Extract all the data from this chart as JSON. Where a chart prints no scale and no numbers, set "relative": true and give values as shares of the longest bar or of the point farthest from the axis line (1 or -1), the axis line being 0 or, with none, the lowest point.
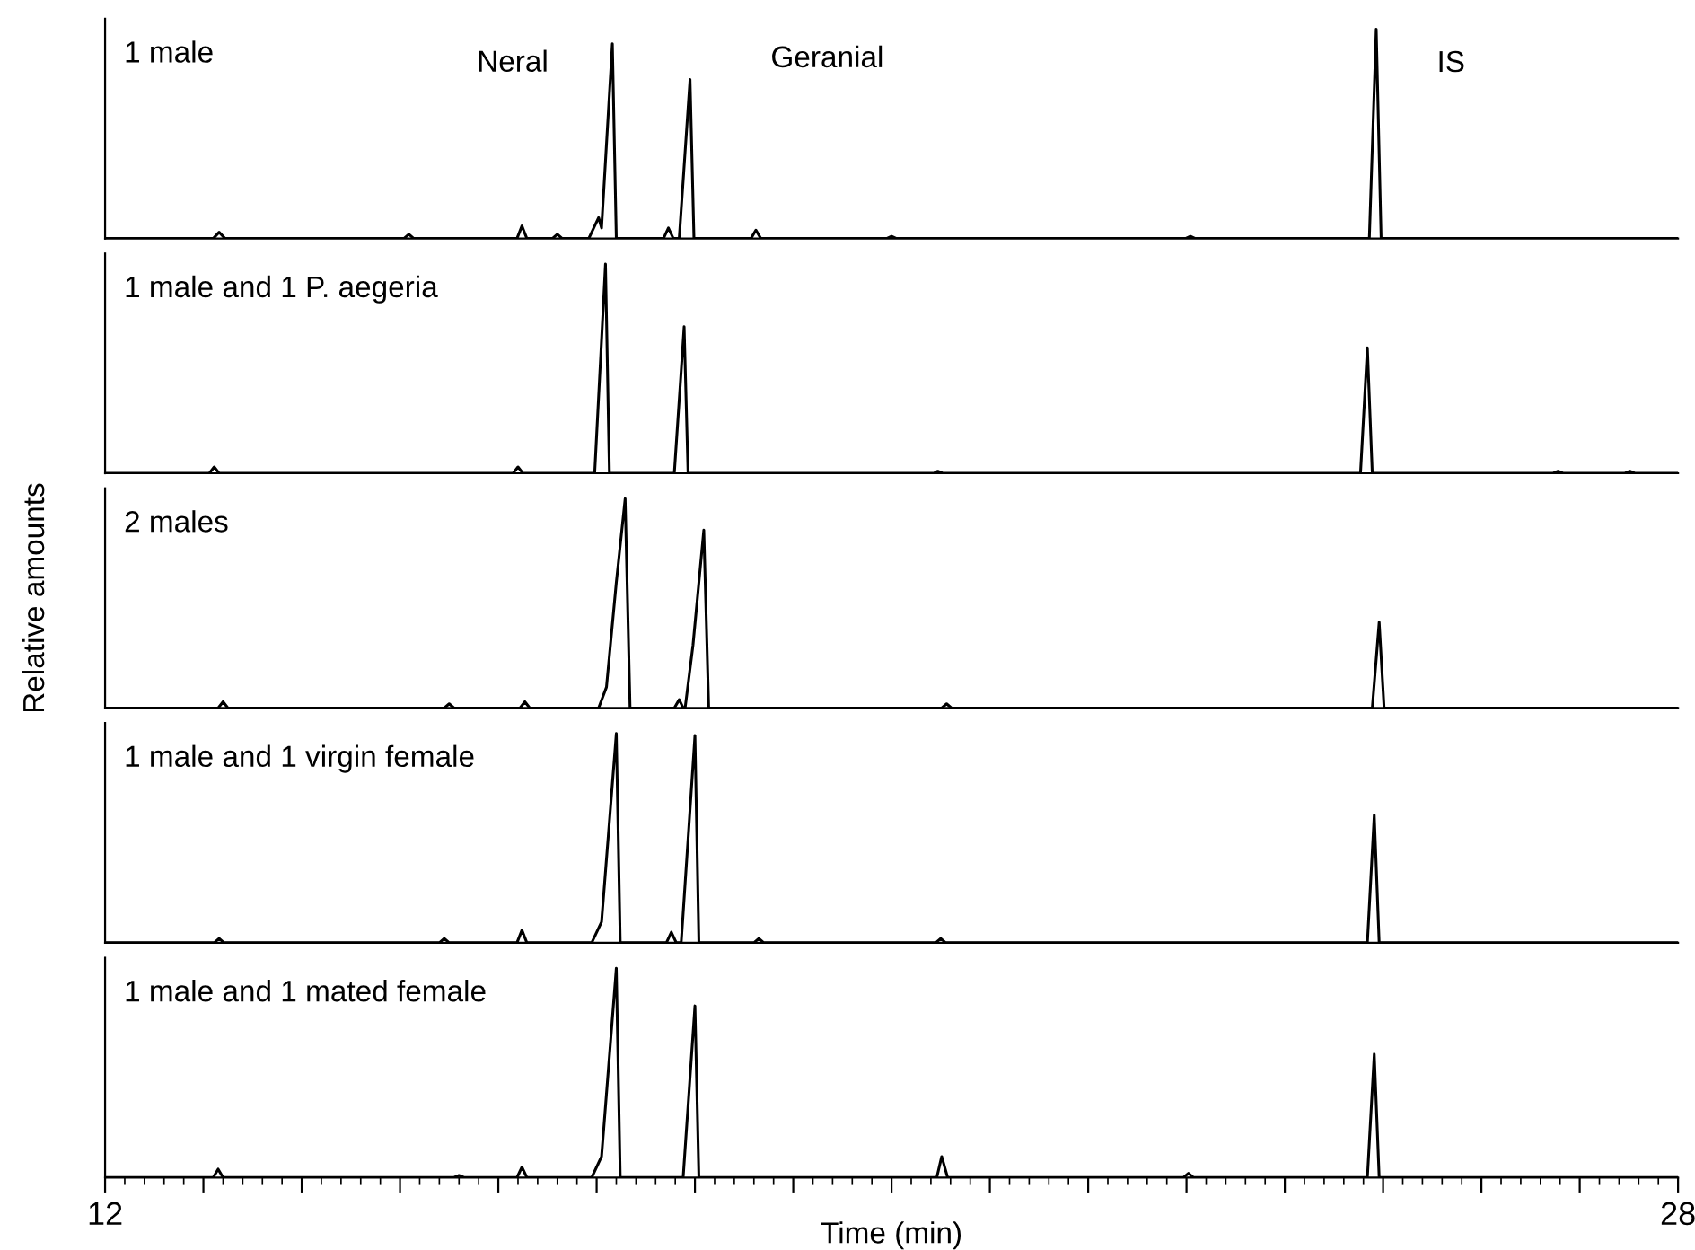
{
  "chart_data": [
    {
      "type": "line",
      "title": "1 male",
      "relative": true,
      "tick_labels": false,
      "xlim": [
        12,
        28
      ],
      "annotations": [
        {
          "text": "Neral",
          "x": 17.16,
          "y": 0.93
        },
        {
          "text": "Geranial",
          "x": 17.95,
          "y": 0.76
        },
        {
          "text": "IS",
          "x": 24.93,
          "y": 1
        }
      ],
      "series": [
        {
          "color": "#000000",
          "x": [
            12,
            13.1,
            13.16,
            13.22,
            15.04,
            15.09,
            15.14,
            16.19,
            16.24,
            16.29,
            16.55,
            16.6,
            16.65,
            16.92,
            17.02,
            17.05,
            17.16,
            17.2,
            17.68,
            17.73,
            17.78,
            17.84,
            17.95,
            17.99,
            18.57,
            18.62,
            18.67,
            19.95,
            20.0,
            20.05,
            22.99,
            23.04,
            23.09,
            24.86,
            24.93,
            24.98,
            28
          ],
          "values": [
            0,
            0,
            0.03,
            0,
            0,
            0.02,
            0,
            0,
            0.06,
            0,
            0,
            0.02,
            0,
            0,
            0.1,
            0.05,
            0.93,
            0,
            0,
            0.05,
            0,
            0,
            0.76,
            0,
            0,
            0.04,
            0,
            0,
            0.01,
            0,
            0,
            0.01,
            0,
            0,
            1,
            0,
            0
          ]
        }
      ]
    },
    {
      "type": "line",
      "title": "1 male and 1 P. aegeria",
      "relative": true,
      "tick_labels": false,
      "xlim": [
        12,
        28
      ],
      "series": [
        {
          "color": "#000000",
          "x": [
            12,
            13.06,
            13.11,
            13.16,
            16.15,
            16.2,
            16.25,
            16.98,
            17.09,
            17.13,
            17.79,
            17.89,
            17.93,
            20.43,
            20.47,
            20.52,
            24.77,
            24.84,
            24.89,
            26.73,
            26.78,
            26.83,
            27.46,
            27.51,
            27.56,
            28
          ],
          "values": [
            0,
            0,
            0.03,
            0,
            0,
            0.03,
            0,
            0,
            1,
            0,
            0,
            0.7,
            0,
            0,
            0.01,
            0,
            0,
            0.6,
            0,
            0,
            0.01,
            0,
            0,
            0.01,
            0,
            0
          ]
        }
      ]
    },
    {
      "type": "line",
      "title": "2 males",
      "ylabel": "Relative amounts",
      "relative": true,
      "tick_labels": false,
      "xlim": [
        12,
        28
      ],
      "series": [
        {
          "color": "#000000",
          "x": [
            12,
            13.15,
            13.2,
            13.25,
            15.45,
            15.5,
            15.55,
            16.22,
            16.27,
            16.32,
            17.02,
            17.1,
            17.2,
            17.29,
            17.34,
            17.79,
            17.84,
            17.88,
            17.9,
            17.98,
            18.09,
            18.14,
            20.51,
            20.56,
            20.61,
            24.89,
            24.96,
            25.01,
            28
          ],
          "values": [
            0,
            0,
            0.03,
            0,
            0,
            0.02,
            0,
            0,
            0.03,
            0,
            0,
            0.1,
            0.6,
            1,
            0,
            0,
            0.04,
            0,
            0,
            0.3,
            0.85,
            0,
            0,
            0.02,
            0,
            0,
            0.41,
            0,
            0
          ]
        }
      ]
    },
    {
      "type": "line",
      "title": "1 male and 1 virgin female",
      "relative": true,
      "tick_labels": false,
      "xlim": [
        12,
        28
      ],
      "series": [
        {
          "color": "#000000",
          "x": [
            12,
            13.11,
            13.16,
            13.21,
            15.4,
            15.45,
            15.5,
            16.19,
            16.24,
            16.29,
            16.95,
            17.05,
            17.2,
            17.24,
            17.71,
            17.76,
            17.81,
            17.86,
            18.0,
            18.04,
            18.6,
            18.65,
            18.7,
            20.45,
            20.5,
            20.55,
            24.84,
            24.91,
            24.96,
            28
          ],
          "values": [
            0,
            0,
            0.02,
            0,
            0,
            0.02,
            0,
            0,
            0.06,
            0,
            0,
            0.1,
            1,
            0,
            0,
            0.05,
            0,
            0,
            0.99,
            0,
            0,
            0.02,
            0,
            0,
            0.02,
            0,
            0,
            0.61,
            0,
            0
          ]
        }
      ]
    },
    {
      "type": "line",
      "title": "1 male and 1 mated female",
      "xlabel": "Time (min)",
      "relative": true,
      "tick_labels": "x",
      "xlim": [
        12,
        28
      ],
      "xticks": [
        12,
        {
          "value": 12.2,
          "label": null
        },
        {
          "value": 12.4,
          "label": null
        },
        {
          "value": 12.6,
          "label": null
        },
        {
          "value": 12.8,
          "label": null
        },
        {
          "value": 13,
          "label": null
        },
        {
          "value": 13.2,
          "label": null
        },
        {
          "value": 13.4,
          "label": null
        },
        {
          "value": 13.6,
          "label": null
        },
        {
          "value": 13.8,
          "label": null
        },
        {
          "value": 14,
          "label": null
        },
        {
          "value": 14.2,
          "label": null
        },
        {
          "value": 14.4,
          "label": null
        },
        {
          "value": 14.6,
          "label": null
        },
        {
          "value": 14.8,
          "label": null
        },
        {
          "value": 15,
          "label": null
        },
        {
          "value": 15.2,
          "label": null
        },
        {
          "value": 15.4,
          "label": null
        },
        {
          "value": 15.6,
          "label": null
        },
        {
          "value": 15.8,
          "label": null
        },
        {
          "value": 16,
          "label": null
        },
        {
          "value": 16.2,
          "label": null
        },
        {
          "value": 16.4,
          "label": null
        },
        {
          "value": 16.6,
          "label": null
        },
        {
          "value": 16.8,
          "label": null
        },
        {
          "value": 17,
          "label": null
        },
        {
          "value": 17.2,
          "label": null
        },
        {
          "value": 17.4,
          "label": null
        },
        {
          "value": 17.6,
          "label": null
        },
        {
          "value": 17.8,
          "label": null
        },
        {
          "value": 18,
          "label": null
        },
        {
          "value": 18.2,
          "label": null
        },
        {
          "value": 18.4,
          "label": null
        },
        {
          "value": 18.6,
          "label": null
        },
        {
          "value": 18.8,
          "label": null
        },
        {
          "value": 19,
          "label": null
        },
        {
          "value": 19.2,
          "label": null
        },
        {
          "value": 19.4,
          "label": null
        },
        {
          "value": 19.6,
          "label": null
        },
        {
          "value": 19.8,
          "label": null
        },
        {
          "value": 20,
          "label": null
        },
        {
          "value": 20.2,
          "label": null
        },
        {
          "value": 20.4,
          "label": null
        },
        {
          "value": 20.6,
          "label": null
        },
        {
          "value": 20.8,
          "label": null
        },
        {
          "value": 21,
          "label": null
        },
        {
          "value": 21.2,
          "label": null
        },
        {
          "value": 21.4,
          "label": null
        },
        {
          "value": 21.6,
          "label": null
        },
        {
          "value": 21.8,
          "label": null
        },
        {
          "value": 22,
          "label": null
        },
        {
          "value": 22.2,
          "label": null
        },
        {
          "value": 22.4,
          "label": null
        },
        {
          "value": 22.6,
          "label": null
        },
        {
          "value": 22.8,
          "label": null
        },
        {
          "value": 23,
          "label": null
        },
        {
          "value": 23.2,
          "label": null
        },
        {
          "value": 23.4,
          "label": null
        },
        {
          "value": 23.6,
          "label": null
        },
        {
          "value": 23.8,
          "label": null
        },
        {
          "value": 24,
          "label": null
        },
        {
          "value": 24.2,
          "label": null
        },
        {
          "value": 24.4,
          "label": null
        },
        {
          "value": 24.6,
          "label": null
        },
        {
          "value": 24.8,
          "label": null
        },
        {
          "value": 25,
          "label": null
        },
        {
          "value": 25.2,
          "label": null
        },
        {
          "value": 25.4,
          "label": null
        },
        {
          "value": 25.6,
          "label": null
        },
        {
          "value": 25.8,
          "label": null
        },
        {
          "value": 26,
          "label": null
        },
        {
          "value": 26.2,
          "label": null
        },
        {
          "value": 26.4,
          "label": null
        },
        {
          "value": 26.6,
          "label": null
        },
        {
          "value": 26.8,
          "label": null
        },
        {
          "value": 27,
          "label": null
        },
        {
          "value": 27.2,
          "label": null
        },
        {
          "value": 27.4,
          "label": null
        },
        {
          "value": 27.6,
          "label": null
        },
        {
          "value": 27.8,
          "label": null
        },
        28
      ],
      "series": [
        {
          "color": "#000000",
          "x": [
            12,
            13.1,
            13.15,
            13.2,
            15.55,
            15.6,
            15.65,
            16.19,
            16.24,
            16.29,
            16.95,
            17.05,
            17.2,
            17.24,
            17.88,
            18.0,
            18.04,
            20.46,
            20.51,
            20.57,
            22.97,
            23.02,
            23.07,
            24.84,
            24.91,
            24.96,
            28
          ],
          "values": [
            0,
            0,
            0.04,
            0,
            0,
            0.01,
            0,
            0,
            0.05,
            0,
            0,
            0.1,
            1,
            0,
            0,
            0.82,
            0,
            0,
            0.1,
            0,
            0,
            0.02,
            0,
            0,
            0.59,
            0,
            0
          ]
        }
      ]
    }
  ]
}
